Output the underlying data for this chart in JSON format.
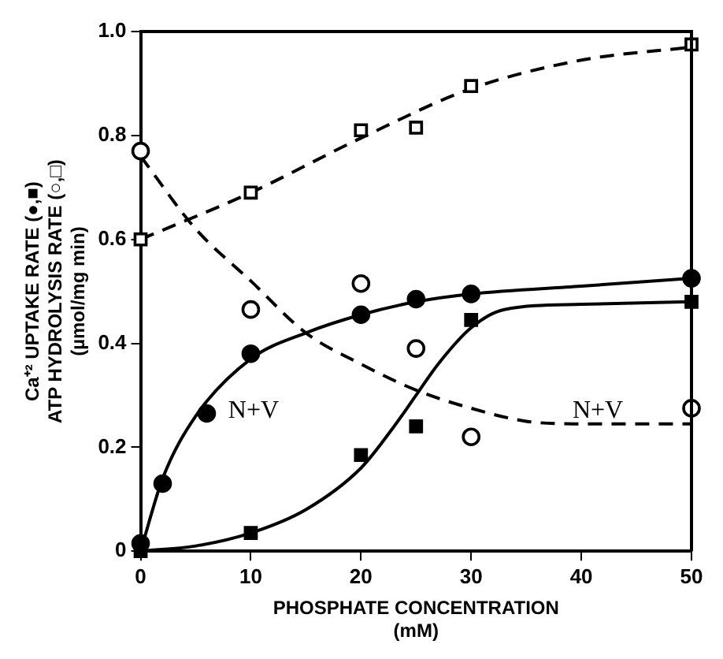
{
  "chart_data": {
    "type": "scatter",
    "xlabel": "PHOSPHATE CONCENTRATION\n(mM)",
    "ylabel": "Ca⁺² UPTAKE RATE (●,■)\nATP HYDROLYSIS RATE (○,□)\n(µmol/mg min)",
    "xlim": [
      0,
      50
    ],
    "xticks": [
      0,
      10,
      20,
      30,
      40,
      50
    ],
    "ylim": [
      0,
      1
    ],
    "yticks": [
      0,
      0.2,
      0.4,
      0.6,
      0.8,
      {
        "value": 1,
        "label": "1.0"
      }
    ],
    "grid": false,
    "legend": false,
    "series": [
      {
        "color": "#000000",
        "marker": "circle",
        "x": [
          0,
          2,
          6,
          10,
          20,
          25,
          30,
          50
        ],
        "values": [
          0.015,
          0.13,
          0.265,
          0.38,
          0.455,
          0.485,
          0.495,
          0.525
        ]
      },
      {
        "color": "#000000",
        "marker": "square",
        "x": [
          0,
          10,
          20,
          25,
          30,
          50
        ],
        "values": [
          0,
          0.035,
          0.185,
          0.24,
          0.445,
          0.48
        ]
      },
      {
        "color": "#ffffff",
        "marker": "square",
        "x": [
          0,
          10,
          20,
          25,
          30,
          50
        ],
        "values": [
          0.6,
          0.69,
          0.81,
          0.815,
          0.895,
          0.975
        ]
      },
      {
        "color": "#ffffff",
        "marker": "circle",
        "x": [
          0,
          10,
          20,
          25,
          30,
          50
        ],
        "values": [
          0.77,
          0.465,
          0.515,
          0.39,
          0.22,
          0.275
        ]
      },
      {
        "type": "line",
        "color": "#000000",
        "marker": "none",
        "line_style": "solid",
        "x": [
          0,
          2,
          5,
          10,
          15,
          20,
          25,
          30,
          40,
          50
        ],
        "values": [
          0,
          0.14,
          0.26,
          0.37,
          0.42,
          0.455,
          0.48,
          0.495,
          0.51,
          0.525
        ]
      },
      {
        "type": "line",
        "color": "#000000",
        "marker": "none",
        "line_style": "solid",
        "x": [
          0,
          5,
          10,
          15,
          20,
          23,
          25,
          27,
          30,
          33,
          40,
          50
        ],
        "values": [
          0,
          0.01,
          0.035,
          0.08,
          0.16,
          0.24,
          0.3,
          0.36,
          0.43,
          0.465,
          0.475,
          0.48
        ]
      },
      {
        "type": "line",
        "color": "#000000",
        "marker": "none",
        "line_style": "dashed",
        "x": [
          0,
          10,
          20,
          30,
          40,
          50
        ],
        "values": [
          0.6,
          0.69,
          0.795,
          0.89,
          0.945,
          0.97
        ]
      },
      {
        "type": "line",
        "color": "#000000",
        "marker": "none",
        "line_style": "dashed",
        "x": [
          0,
          5,
          10,
          15,
          20,
          25,
          30,
          35,
          40,
          50
        ],
        "values": [
          0.76,
          0.62,
          0.52,
          0.42,
          0.36,
          0.31,
          0.275,
          0.25,
          0.245,
          0.245
        ]
      }
    ],
    "annotations": [
      "N+V",
      "N+V"
    ]
  }
}
